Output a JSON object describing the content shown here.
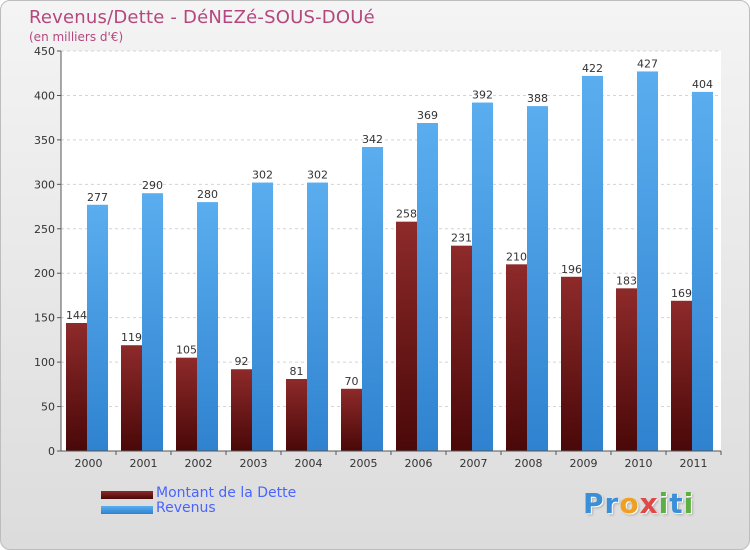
{
  "page": {
    "title": "Revenus/Dette - DéNEZé-SOUS-DOUé",
    "subtitle": "(en milliers d'€)"
  },
  "legend": {
    "items": [
      {
        "label": "Montant de la Dette",
        "color": "#7a1c1c"
      },
      {
        "label": "Revenus",
        "color": "#4a9ee6"
      }
    ]
  },
  "logo": {
    "letters": [
      {
        "char": "P",
        "color": "#3a8fd8"
      },
      {
        "char": "r",
        "color": "#3a8fd8"
      },
      {
        "char": "o",
        "color": "#f0a020"
      },
      {
        "char": "x",
        "color": "#e04848"
      },
      {
        "char": "i",
        "color": "#5ab040"
      },
      {
        "char": "t",
        "color": "#3a8fd8"
      },
      {
        "char": "i",
        "color": "#5ab040"
      }
    ]
  },
  "chart_data": {
    "type": "bar",
    "categories": [
      "2000",
      "2001",
      "2002",
      "2003",
      "2004",
      "2005",
      "2006",
      "2007",
      "2008",
      "2009",
      "2010",
      "2011"
    ],
    "series": [
      {
        "name": "Montant de la Dette",
        "values": [
          144,
          119,
          105,
          92,
          81,
          70,
          258,
          231,
          210,
          196,
          183,
          169
        ],
        "color": "#7a1c1c"
      },
      {
        "name": "Revenus",
        "values": [
          277,
          290,
          280,
          302,
          302,
          342,
          369,
          392,
          388,
          422,
          427,
          404
        ],
        "color": "#4a9ee6"
      }
    ],
    "title": "Revenus/Dette - DéNEZé-SOUS-DOUé",
    "subtitle": "(en milliers d'€)",
    "ylim": [
      0,
      450
    ],
    "yticks": [
      0,
      50,
      100,
      150,
      200,
      250,
      300,
      350,
      400,
      450
    ],
    "grid": true,
    "legend_position": "bottom-left"
  }
}
